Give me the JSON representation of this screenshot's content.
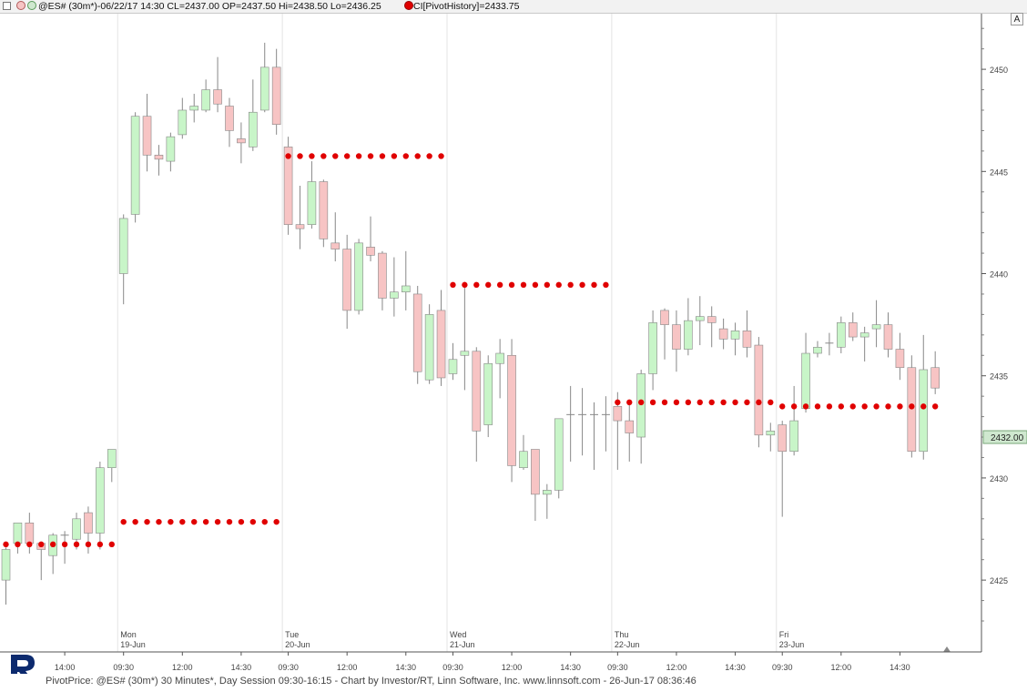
{
  "header": {
    "title": "@ES# (30m*)-06/22/17 14:30 CL=2437.00 OP=2437.50 Hi=2438.50 Lo=2436.25",
    "indicator": "CI[PivotHistory]=2433.75"
  },
  "scale_button": "A",
  "footer": {
    "text": "PivotPrice: @ES# (30m*) 30 Minutes*, Day Session 09:30-16:15 - Chart by Investor/RT, Linn Software, Inc. www.linnsoft.com - 26-Jun-17 08:36:46"
  },
  "colors": {
    "up_fill": "#c8f5c8",
    "down_fill": "#f7c4c4",
    "candle_border": "#888888",
    "pivot_dot": "#e00000",
    "price_marker": "#cfe8cf"
  },
  "chart_data": {
    "type": "candlestick",
    "ylim": [
      2423.0,
      2452.5
    ],
    "y_ticks": [
      2425,
      2430,
      2435,
      2440,
      2445,
      2450
    ],
    "last_price_label": "2432.00",
    "days": [
      {
        "day": "Mon",
        "date": "19-Jun"
      },
      {
        "day": "Tue",
        "date": "20-Jun"
      },
      {
        "day": "Wed",
        "date": "21-Jun"
      },
      {
        "day": "Thu",
        "date": "22-Jun"
      },
      {
        "day": "Fri",
        "date": "23-Jun"
      }
    ],
    "time_labels": [
      "14:00",
      "09:30",
      "12:00",
      "14:30",
      "09:30",
      "12:00",
      "14:30",
      "09:30",
      "12:00",
      "14:30",
      "09:30",
      "12:00",
      "14:30",
      "09:30",
      "12:00",
      "14:30"
    ],
    "pivots": [
      {
        "from": 0,
        "to": 9,
        "value": 2426.75
      },
      {
        "from": 10,
        "to": 23,
        "value": 2427.85
      },
      {
        "from": 24,
        "to": 37,
        "value": 2445.75
      },
      {
        "from": 38,
        "to": 51,
        "value": 2439.45
      },
      {
        "from": 52,
        "to": 65,
        "value": 2433.7
      },
      {
        "from": 66,
        "to": 79,
        "value": 2433.5
      }
    ],
    "candles": [
      [
        2425.0,
        2426.5,
        2423.8,
        2426.6
      ],
      [
        2426.8,
        2427.8,
        2426.3,
        2427.8
      ],
      [
        2427.8,
        2426.8,
        2426.3,
        2428.3
      ],
      [
        2426.8,
        2426.5,
        2425.0,
        2426.8
      ],
      [
        2426.2,
        2427.2,
        2425.3,
        2427.3
      ],
      [
        2427.2,
        2427.2,
        2425.8,
        2427.4
      ],
      [
        2427.0,
        2428.0,
        2426.5,
        2428.3
      ],
      [
        2428.3,
        2427.3,
        2426.3,
        2428.6
      ],
      [
        2427.3,
        2430.5,
        2426.5,
        2430.8
      ],
      [
        2430.5,
        2431.4,
        2429.8,
        2431.4
      ],
      [
        2440.0,
        2442.7,
        2438.5,
        2442.9
      ],
      [
        2442.9,
        2447.7,
        2442.5,
        2447.9
      ],
      [
        2447.7,
        2445.8,
        2445.0,
        2448.8
      ],
      [
        2445.8,
        2445.6,
        2444.8,
        2446.3
      ],
      [
        2445.5,
        2446.7,
        2445.0,
        2446.9
      ],
      [
        2446.8,
        2448.0,
        2446.6,
        2448.6
      ],
      [
        2448.0,
        2448.2,
        2447.4,
        2448.8
      ],
      [
        2448.0,
        2449.0,
        2447.9,
        2449.5
      ],
      [
        2449.0,
        2448.3,
        2447.9,
        2450.6
      ],
      [
        2448.2,
        2447.0,
        2446.2,
        2448.6
      ],
      [
        2446.6,
        2446.4,
        2445.4,
        2447.4
      ],
      [
        2446.2,
        2447.9,
        2446.0,
        2449.5
      ],
      [
        2448.0,
        2450.1,
        2447.9,
        2451.3
      ],
      [
        2450.1,
        2447.3,
        2446.8,
        2451.0
      ],
      [
        2446.2,
        2442.4,
        2441.9,
        2446.7
      ],
      [
        2442.4,
        2442.2,
        2441.2,
        2444.3
      ],
      [
        2442.4,
        2444.5,
        2442.2,
        2445.5
      ],
      [
        2444.5,
        2441.7,
        2441.3,
        2444.6
      ],
      [
        2441.5,
        2441.2,
        2440.6,
        2443.0
      ],
      [
        2441.2,
        2438.2,
        2437.3,
        2441.9
      ],
      [
        2438.2,
        2441.5,
        2438.0,
        2441.7
      ],
      [
        2441.3,
        2440.9,
        2440.6,
        2442.8
      ],
      [
        2441.0,
        2438.8,
        2438.2,
        2441.1
      ],
      [
        2438.8,
        2439.1,
        2437.9,
        2440.8
      ],
      [
        2439.1,
        2439.4,
        2438.2,
        2441.1
      ],
      [
        2439.0,
        2435.2,
        2434.6,
        2439.4
      ],
      [
        2434.8,
        2438.0,
        2434.6,
        2438.5
      ],
      [
        2438.2,
        2434.9,
        2434.5,
        2439.2
      ],
      [
        2435.1,
        2435.8,
        2434.8,
        2436.6
      ],
      [
        2436.0,
        2436.2,
        2434.3,
        2439.6
      ],
      [
        2436.2,
        2432.3,
        2430.8,
        2436.4
      ],
      [
        2432.6,
        2435.6,
        2432.0,
        2436.0
      ],
      [
        2435.6,
        2436.1,
        2433.9,
        2436.8
      ],
      [
        2436.0,
        2430.6,
        2429.8,
        2436.8
      ],
      [
        2430.5,
        2431.3,
        2430.4,
        2432.1
      ],
      [
        2431.4,
        2429.2,
        2427.9,
        2431.4
      ],
      [
        2429.2,
        2429.4,
        2428.0,
        2429.7
      ],
      [
        2429.4,
        2432.9,
        2429.0,
        2432.9
      ],
      [
        2433.1,
        2433.1,
        2430.8,
        2434.5
      ],
      [
        2433.1,
        2433.1,
        2431.1,
        2434.4
      ],
      [
        2433.1,
        2433.1,
        2430.4,
        2433.7
      ],
      [
        2433.1,
        2433.1,
        2431.3,
        2434.0
      ],
      [
        2433.5,
        2432.8,
        2430.4,
        2434.2
      ],
      [
        2432.8,
        2432.2,
        2430.8,
        2433.8
      ],
      [
        2432.0,
        2435.1,
        2430.7,
        2435.3
      ],
      [
        2435.1,
        2437.6,
        2434.3,
        2438.2
      ],
      [
        2438.2,
        2437.5,
        2435.8,
        2438.3
      ],
      [
        2437.5,
        2436.3,
        2435.2,
        2438.2
      ],
      [
        2436.3,
        2437.7,
        2436.0,
        2438.8
      ],
      [
        2437.7,
        2437.9,
        2436.5,
        2438.9
      ],
      [
        2437.9,
        2437.6,
        2436.4,
        2438.4
      ],
      [
        2437.3,
        2436.8,
        2436.3,
        2437.8
      ],
      [
        2436.8,
        2437.2,
        2436.0,
        2437.6
      ],
      [
        2437.2,
        2436.4,
        2435.9,
        2438.2
      ],
      [
        2436.5,
        2432.1,
        2431.5,
        2436.9
      ],
      [
        2432.1,
        2432.3,
        2431.3,
        2432.7
      ],
      [
        2432.6,
        2431.3,
        2428.1,
        2432.8
      ],
      [
        2431.3,
        2432.8,
        2431.1,
        2434.5
      ],
      [
        2433.4,
        2436.1,
        2433.2,
        2437.1
      ],
      [
        2436.1,
        2436.4,
        2435.9,
        2436.7
      ],
      [
        2436.6,
        2436.6,
        2436.0,
        2437.1
      ],
      [
        2436.4,
        2437.6,
        2436.1,
        2437.9
      ],
      [
        2437.6,
        2436.9,
        2436.7,
        2438.1
      ],
      [
        2436.9,
        2437.1,
        2435.7,
        2437.4
      ],
      [
        2437.3,
        2437.5,
        2436.4,
        2438.7
      ],
      [
        2437.5,
        2436.3,
        2435.9,
        2438.1
      ],
      [
        2436.3,
        2435.4,
        2434.8,
        2437.1
      ],
      [
        2435.4,
        2431.3,
        2431.0,
        2436.0
      ],
      [
        2431.3,
        2435.3,
        2430.9,
        2437.0
      ],
      [
        2435.4,
        2434.4,
        2434.1,
        2436.2
      ]
    ]
  }
}
